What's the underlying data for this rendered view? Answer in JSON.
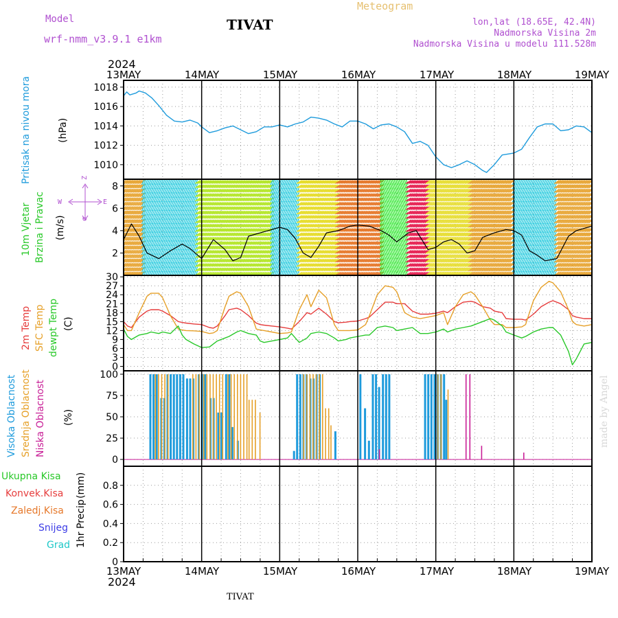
{
  "header": {
    "model_label": "Model",
    "model_name": "wrf-nmm_v3.9.1  e1km",
    "station": "TIVAT",
    "product": "Meteogram",
    "coords": "lon,lat (18.65E, 42.4N)",
    "elevation": "Nadmorska Visina 2m",
    "model_elevation": "Nadmorska Visina u modelu 111.528m",
    "year": "2024",
    "footer_station": "TIVAT",
    "credit": "made by Angel"
  },
  "colors": {
    "pressure": "#1e9bdc",
    "wind_speed": "#000000",
    "temp2m": "#e63c3c",
    "sfc_temp": "#e6a028",
    "dewpt": "#28c828",
    "high_cloud": "#1e9bdc",
    "mid_cloud": "#e6a028",
    "low_cloud": "#c81e96",
    "grid": "#999999"
  },
  "chart_data": [
    {
      "type": "line",
      "panel": "pressure",
      "ylabel": "Pritisak na nivou mora",
      "unit": "(hPa)",
      "ylim": [
        1008.5,
        1018.7
      ],
      "yticks": [
        1010,
        1012,
        1014,
        1016,
        1018
      ],
      "x_days": [
        0,
        0.04,
        0.08,
        0.16,
        0.2,
        0.28,
        0.36,
        0.45,
        0.55,
        0.65,
        0.75,
        0.85,
        0.95,
        1.0,
        1.1,
        1.2,
        1.3,
        1.4,
        1.5,
        1.6,
        1.7,
        1.8,
        1.9,
        2.0,
        2.1,
        2.2,
        2.3,
        2.4,
        2.5,
        2.6,
        2.7,
        2.8,
        2.9,
        3.0,
        3.1,
        3.2,
        3.3,
        3.4,
        3.5,
        3.6,
        3.7,
        3.8,
        3.9,
        4.0,
        4.1,
        4.2,
        4.3,
        4.4,
        4.5,
        4.6,
        4.65,
        4.75,
        4.85,
        5.0,
        5.1,
        5.2,
        5.3,
        5.4,
        5.5,
        5.6,
        5.7,
        5.8,
        5.9,
        6.0
      ],
      "values": [
        1017.1,
        1017.5,
        1017.2,
        1017.4,
        1017.6,
        1017.4,
        1016.9,
        1016.1,
        1015.1,
        1014.5,
        1014.4,
        1014.6,
        1014.3,
        1013.9,
        1013.3,
        1013.5,
        1013.8,
        1014.0,
        1013.6,
        1013.2,
        1013.4,
        1013.9,
        1013.9,
        1014.1,
        1013.9,
        1014.2,
        1014.4,
        1014.9,
        1014.8,
        1014.6,
        1014.2,
        1013.9,
        1014.5,
        1014.5,
        1014.2,
        1013.7,
        1014.1,
        1014.2,
        1013.9,
        1013.4,
        1012.2,
        1012.4,
        1012.0,
        1010.8,
        1010.0,
        1009.7,
        1010.0,
        1010.4,
        1010.0,
        1009.4,
        1009.2,
        1010.0,
        1011.0,
        1011.2,
        1011.6,
        1012.8,
        1013.9,
        1014.2,
        1014.2,
        1013.5,
        1013.6,
        1014.0,
        1013.9,
        1013.3
      ]
    },
    {
      "type": "line",
      "panel": "wind",
      "ylabel": "10m Vjetar",
      "ylabel2": "Brzina i Pravac",
      "unit": "(m/s)",
      "compass": {
        "n": "Z",
        "w": "W",
        "e": "E",
        "s": "σ"
      },
      "ylim": [
        0,
        8.6
      ],
      "yticks": [
        2,
        4,
        6,
        8
      ],
      "x_days": [
        0,
        0.1,
        0.2,
        0.3,
        0.45,
        0.6,
        0.75,
        0.85,
        1.0,
        1.15,
        1.3,
        1.4,
        1.5,
        1.6,
        1.75,
        1.9,
        2.0,
        2.1,
        2.2,
        2.3,
        2.4,
        2.5,
        2.6,
        2.75,
        2.9,
        3.0,
        3.15,
        3.3,
        3.4,
        3.5,
        3.65,
        3.75,
        3.9,
        4.0,
        4.1,
        4.2,
        4.3,
        4.4,
        4.5,
        4.6,
        4.75,
        4.9,
        5.0,
        5.1,
        5.2,
        5.3,
        5.4,
        5.55,
        5.7,
        5.8,
        5.9,
        6.0
      ],
      "values": [
        3.2,
        4.6,
        3.5,
        2.0,
        1.5,
        2.2,
        2.8,
        2.4,
        1.5,
        3.2,
        2.3,
        1.3,
        1.6,
        3.5,
        3.8,
        4.1,
        4.3,
        4.1,
        3.3,
        2.0,
        1.6,
        2.6,
        3.8,
        4.0,
        4.4,
        4.5,
        4.4,
        4.0,
        3.6,
        3.0,
        3.8,
        4.0,
        2.3,
        2.5,
        3.0,
        3.2,
        2.8,
        2.0,
        2.2,
        3.4,
        3.8,
        4.1,
        4.0,
        3.6,
        2.2,
        1.8,
        1.3,
        1.5,
        3.5,
        4.0,
        4.2,
        4.4
      ]
    },
    {
      "type": "line",
      "panel": "temperature",
      "ylabel": "2m Temp",
      "ylabel2": "SFC Temp",
      "ylabel3": "dewpt Temp",
      "unit": "(C)",
      "ylim": [
        -1.5,
        30.5
      ],
      "yticks": [
        0,
        3,
        6,
        9,
        12,
        15,
        18,
        21,
        24,
        27,
        30
      ],
      "x_days": [
        0,
        0.05,
        0.1,
        0.2,
        0.3,
        0.35,
        0.45,
        0.5,
        0.6,
        0.7,
        0.75,
        0.8,
        0.9,
        1.0,
        1.1,
        1.15,
        1.2,
        1.3,
        1.35,
        1.45,
        1.5,
        1.6,
        1.7,
        1.75,
        1.8,
        1.9,
        2.0,
        2.1,
        2.15,
        2.25,
        2.35,
        2.4,
        2.5,
        2.6,
        2.7,
        2.75,
        2.85,
        2.9,
        3.0,
        3.1,
        3.15,
        3.25,
        3.35,
        3.45,
        3.5,
        3.6,
        3.7,
        3.8,
        3.9,
        4.0,
        4.1,
        4.15,
        4.25,
        4.35,
        4.45,
        4.5,
        4.6,
        4.7,
        4.75,
        4.85,
        4.9,
        5.0,
        5.1,
        5.15,
        5.25,
        5.35,
        5.45,
        5.5,
        5.6,
        5.7,
        5.75,
        5.8,
        5.9,
        6.0
      ],
      "series": [
        {
          "key": "temp2m",
          "values": [
            15.0,
            13.5,
            13.0,
            16.5,
            18.5,
            19.0,
            19.0,
            18.5,
            17.0,
            15.0,
            14.7,
            14.5,
            14.2,
            14.0,
            13.0,
            12.8,
            13.5,
            17.0,
            19.0,
            19.5,
            19.0,
            17.0,
            14.5,
            14.0,
            13.8,
            13.5,
            13.2,
            12.8,
            12.5,
            15.0,
            18.0,
            17.5,
            19.5,
            17.5,
            15.0,
            14.6,
            14.8,
            15.0,
            15.2,
            16.0,
            16.5,
            19.0,
            21.5,
            21.5,
            21.0,
            21.0,
            18.5,
            17.5,
            17.5,
            17.8,
            18.5,
            18.0,
            20.0,
            21.5,
            21.8,
            21.5,
            20.0,
            19.5,
            18.5,
            18.0,
            16.0,
            15.8,
            15.8,
            15.5,
            17.5,
            20.0,
            21.5,
            22.0,
            21.0,
            19.0,
            17.0,
            16.5,
            16.0,
            16.0
          ]
        },
        {
          "key": "sfc_temp",
          "values": [
            14.0,
            12.0,
            12.0,
            18.0,
            23.5,
            24.5,
            24.5,
            23.0,
            17.0,
            12.5,
            12.2,
            12.0,
            11.9,
            11.7,
            11.0,
            11.2,
            12.0,
            20.0,
            23.5,
            25.0,
            24.5,
            20.0,
            12.5,
            12.2,
            12.0,
            11.5,
            11.0,
            11.2,
            11.5,
            19.0,
            24.0,
            20.0,
            25.5,
            23.0,
            14.0,
            12.0,
            12.0,
            12.0,
            12.2,
            14.0,
            17.0,
            24.0,
            27.0,
            26.5,
            25.0,
            18.0,
            16.5,
            16.0,
            16.5,
            17.0,
            18.0,
            14.0,
            20.0,
            24.0,
            25.0,
            24.0,
            20.0,
            15.5,
            14.0,
            14.0,
            13.0,
            13.0,
            13.2,
            14.0,
            22.0,
            26.5,
            28.5,
            28.0,
            25.0,
            19.0,
            15.0,
            14.0,
            13.5,
            14.0
          ]
        },
        {
          "key": "dewpt",
          "values": [
            12.5,
            10.0,
            9.0,
            10.5,
            11.0,
            11.5,
            11.0,
            11.5,
            11.0,
            13.5,
            10.5,
            9.0,
            7.5,
            6.3,
            6.5,
            7.5,
            8.5,
            9.5,
            10.0,
            11.5,
            12.0,
            11.0,
            10.5,
            8.5,
            8.0,
            8.5,
            9.0,
            9.5,
            11.0,
            8.0,
            9.5,
            11.0,
            11.5,
            11.0,
            9.5,
            8.5,
            9.0,
            9.5,
            10.0,
            10.5,
            10.5,
            13.0,
            13.5,
            13.0,
            12.0,
            12.5,
            13.0,
            11.0,
            11.0,
            11.5,
            12.5,
            11.5,
            12.5,
            13.0,
            13.5,
            14.0,
            15.0,
            16.0,
            15.5,
            13.5,
            11.5,
            10.5,
            9.5,
            10.0,
            11.5,
            12.5,
            13.0,
            13.0,
            10.5,
            5.0,
            0.5,
            2.5,
            7.5,
            8.0
          ]
        }
      ]
    },
    {
      "type": "bar",
      "panel": "cloud",
      "ylabel": "Visoka Oblacnost",
      "ylabel2": "Srednja Oblacnost",
      "ylabel3": "Niska Oblacnost",
      "unit": "(%)",
      "ylim": [
        -8,
        104
      ],
      "yticks": [
        0,
        25,
        50,
        75,
        100
      ],
      "series": [
        {
          "key": "high_cloud",
          "segments": [
            [
              0.33,
              0.45,
              100
            ],
            [
              0.47,
              0.53,
              72
            ],
            [
              0.55,
              0.78,
              100
            ],
            [
              0.8,
              0.9,
              95
            ],
            [
              0.95,
              1.07,
              100
            ],
            [
              1.1,
              1.16,
              72
            ],
            [
              1.2,
              1.26,
              55
            ],
            [
              1.3,
              1.35,
              100
            ],
            [
              1.38,
              1.42,
              38
            ],
            [
              1.45,
              1.48,
              22
            ],
            [
              2.17,
              2.2,
              10
            ],
            [
              2.21,
              2.35,
              100
            ],
            [
              2.38,
              2.44,
              95
            ],
            [
              2.46,
              2.54,
              100
            ],
            [
              2.7,
              2.73,
              33
            ],
            [
              3.02,
              3.06,
              100
            ],
            [
              3.08,
              3.11,
              60
            ],
            [
              3.13,
              3.15,
              22
            ],
            [
              3.18,
              3.24,
              100
            ],
            [
              3.26,
              3.29,
              85
            ],
            [
              3.31,
              3.4,
              100
            ],
            [
              3.85,
              4.1,
              100
            ],
            [
              4.12,
              4.14,
              70
            ]
          ]
        },
        {
          "key": "mid_cloud",
          "segments": [
            [
              0.4,
              0.6,
              100
            ],
            [
              0.88,
              1.0,
              100
            ],
            [
              1.02,
              1.28,
              100
            ],
            [
              1.33,
              1.58,
              100
            ],
            [
              1.6,
              1.7,
              70
            ],
            [
              1.74,
              1.78,
              55
            ],
            [
              2.3,
              2.56,
              100
            ],
            [
              2.58,
              2.63,
              60
            ],
            [
              2.65,
              2.67,
              40
            ],
            [
              4.02,
              4.08,
              100
            ],
            [
              4.15,
              4.17,
              82
            ]
          ]
        },
        {
          "key": "low_cloud",
          "segments": [
            [
              3.27,
              3.28,
              12
            ],
            [
              4.38,
              4.39,
              100
            ],
            [
              4.43,
              4.44,
              100
            ],
            [
              4.58,
              4.59,
              16
            ],
            [
              5.12,
              5.13,
              8
            ]
          ]
        }
      ]
    },
    {
      "type": "line",
      "panel": "precip",
      "ylabel": "1hr Precip",
      "unit": "(mm)",
      "ylim": [
        0,
        1
      ],
      "yticks": [
        0,
        0.2,
        0.4,
        0.6,
        0.8
      ],
      "legend": [
        "Ukupna  Kisa",
        "Konvek.Kisa",
        "Zaledj.Kisa",
        "Snijeg",
        "Grad"
      ],
      "legend_colors": [
        "#28c828",
        "#e63c3c",
        "#e6782a",
        "#3c3ce6",
        "#1ec8c8"
      ],
      "values": []
    }
  ],
  "x_axis": {
    "days": [
      "13MAY",
      "14MAY",
      "15MAY",
      "16MAY",
      "17MAY",
      "18MAY",
      "19MAY"
    ]
  }
}
